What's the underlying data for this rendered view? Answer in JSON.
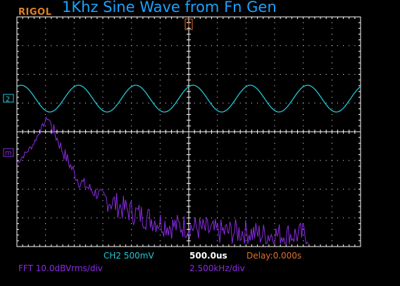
{
  "header": {
    "brand": "RIGOL",
    "title": "1Khz Sine Wave from Fn Gen"
  },
  "markers": {
    "ch2": "2",
    "math": "m",
    "trigger": "T"
  },
  "status": {
    "ch2_scale": "CH2 500mV",
    "timebase": "500.0us",
    "delay": "Delay:0.000s",
    "fft_scale": "FFT 10.0dBVrms/div",
    "fft_span": "2.500kHz/div"
  },
  "colors": {
    "brand": "#e08020",
    "title": "#1aa3ff",
    "grid": "#ffffff",
    "ch2": "#22c8d8",
    "fft": "#8a2be2",
    "timebase": "#ffffff",
    "delay": "#e07030",
    "background": "#000000"
  },
  "chart_data": [
    {
      "type": "line",
      "series": [
        {
          "values": [
            0
          ]
        }
      ],
      "waveform": "sine",
      "frequency_khz": 1,
      "visible_cycles": 6,
      "grid": true
    },
    {
      "type": "line",
      "series": [
        {
          "values": [
            -18,
            -12,
            -2,
            -14,
            -24,
            -28,
            -31,
            -34,
            -36,
            -38,
            -40,
            -40,
            -41,
            -42,
            -42,
            -42,
            -43,
            -43,
            -43,
            -43
          ]
        }
      ],
      "grid": true
    }
  ]
}
